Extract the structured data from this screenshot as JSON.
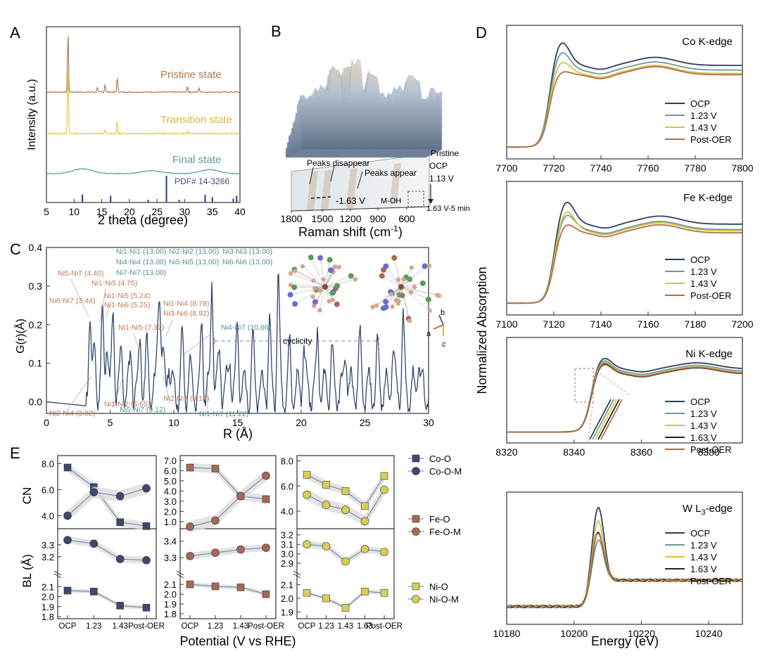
{
  "panel_labels": {
    "A": "A",
    "B": "B",
    "C": "C",
    "D": "D",
    "E": "E"
  },
  "colors": {
    "axis": "#333333",
    "navy": "#2f3e5f",
    "teal": "#6c98a0",
    "gold": "#d7c33f",
    "brown": "#b36d44",
    "black": "#222222",
    "xrd_pristine": "#b9774a",
    "xrd_transition": "#e4ca3e",
    "xrd_final": "#5c9a9a",
    "pdf": "#3a4f8a",
    "band": "#dcdcdc",
    "co": "#3d4a6e",
    "fe": "#a56a55",
    "ni": "#d8cf56",
    "label_brown": "#b87a55",
    "label_teal": "#4f8f95"
  },
  "chart_data": [
    {
      "panel": "A",
      "type": "line",
      "xlabel": "2 theta (degree)",
      "ylabel": "Intensity (a.u.)",
      "xlim": [
        5,
        40
      ],
      "xticks": [
        5,
        10,
        15,
        20,
        25,
        30,
        35,
        40
      ],
      "series": [
        {
          "name": "Pristine state",
          "peaks": [
            [
              8.9,
              1.0
            ],
            [
              14.2,
              0.08
            ],
            [
              15.6,
              0.13
            ],
            [
              17.8,
              0.25
            ],
            [
              30.5,
              0.1
            ],
            [
              32.6,
              0.07
            ]
          ]
        },
        {
          "name": "Transition state",
          "peaks": [
            [
              8.9,
              0.9
            ],
            [
              15.6,
              0.06
            ],
            [
              17.8,
              0.17
            ],
            [
              30.5,
              0.04
            ]
          ]
        },
        {
          "name": "Final state",
          "humps": [
            [
              11.5,
              0.1
            ],
            [
              24,
              0.06
            ],
            [
              34.5,
              0.08
            ]
          ]
        }
      ],
      "reference": {
        "name": "PDF# 14-3266",
        "sticks": [
          [
            11.5,
            0.3
          ],
          [
            16.6,
            0.25
          ],
          [
            23.4,
            0.1
          ],
          [
            26.7,
            1.0
          ],
          [
            29.0,
            0.1
          ],
          [
            33.7,
            0.3
          ],
          [
            35.0,
            0.2
          ],
          [
            38.8,
            0.15
          ],
          [
            39.4,
            0.25
          ]
        ]
      }
    },
    {
      "panel": "B",
      "type": "area",
      "xlabel": "Raman shift (cm-1)",
      "xlabel_main": "Raman shift (cm",
      "xlabel_sup": "-1",
      "xlabel_close": ")",
      "xticks": [
        "1800",
        "1500",
        "1200",
        "900",
        "600"
      ],
      "annotations": [
        "Peaks disappear",
        "Peaks appear",
        "-1.63 V",
        "M-OH"
      ],
      "potential_labels": [
        "Pristine",
        "OCP",
        "1.13 V",
        "1.63 V-5 min"
      ]
    },
    {
      "panel": "C",
      "type": "line",
      "xlabel": "R (Å)",
      "ylabel": "G(r)(Å)",
      "xlim": [
        0,
        30
      ],
      "ylim": [
        -0.03,
        0.4
      ],
      "xticks": [
        0,
        5,
        10,
        15,
        20,
        25,
        30
      ],
      "yticks": [
        0.0,
        0.1,
        0.2,
        0.3,
        0.4
      ],
      "ytick_labels": [
        "0.0",
        "0.1",
        "0.2",
        "0.3",
        "0.4"
      ],
      "peaks": [
        [
          3.4,
          0.22
        ],
        [
          3.8,
          0.1
        ],
        [
          4.4,
          0.18
        ],
        [
          4.75,
          0.16
        ],
        [
          5.24,
          0.2
        ],
        [
          5.9,
          0.1
        ],
        [
          6.65,
          0.1
        ],
        [
          7.37,
          0.14
        ],
        [
          7.9,
          0.1
        ],
        [
          8.78,
          0.17
        ],
        [
          8.92,
          0.2
        ],
        [
          9.14,
          0.06
        ],
        [
          9.6,
          0.1
        ],
        [
          10.66,
          0.12
        ],
        [
          11.22,
          0.05
        ],
        [
          12.2,
          0.17
        ],
        [
          13.0,
          0.3
        ],
        [
          13.6,
          0.1
        ],
        [
          14.4,
          0.1
        ],
        [
          15.0,
          0.17
        ],
        [
          16.2,
          0.12
        ],
        [
          17.5,
          0.17
        ],
        [
          18.2,
          0.29
        ],
        [
          19.1,
          0.1
        ],
        [
          20.2,
          0.12
        ],
        [
          21.3,
          0.15
        ],
        [
          22.4,
          0.1
        ],
        [
          23.5,
          0.12
        ],
        [
          24.6,
          0.12
        ],
        [
          26.0,
          0.1
        ],
        [
          27.2,
          0.12
        ],
        [
          28.0,
          0.17
        ],
        [
          29.2,
          0.1
        ]
      ],
      "annotations_brown": [
        "Ni5-Ni7 (4.40)",
        "Ni1-Ni5 (4.75)",
        "Ni6-Ni7 (3.44)",
        "Ni1-Ni5 (5.24)",
        "Ni1-Ni6 (5.25)",
        "Ni1-Ni4 (8.78)",
        "Ni3-Ni6 (8.92)",
        "Ni1-Ni5 (7.37)",
        "Ni2-Ni4 (3.82)",
        "Ni1-Ni2 (6.65)",
        "Ni2-Ni7 (9.14)"
      ],
      "annotations_teal": [
        "Ni1-Ni1 (13.00)",
        "Ni2-Ni2 (13.00)",
        "Ni3-Ni3 (13.00)",
        "Ni4-Ni4 (13.00)",
        "Ni5-Ni5 (13.00)",
        "Ni6-Ni6 (13.00)",
        "Ni7-Ni7 (13.00)",
        "Ni4-Ni7 (10.66)",
        "Ni5-Ni7 (9.12)",
        "Ni1-Ni7 (11.22)"
      ],
      "cyclicity_label": "cyclicity",
      "axes_labels": [
        "a",
        "b",
        "c"
      ]
    },
    {
      "panel": "D",
      "type": "line",
      "ylabel": "Normalized Absorption",
      "xlabel": "Energy (eV)",
      "subplots": [
        {
          "title": "Co K-edge",
          "xlim": [
            7700,
            7800
          ],
          "xticks": [
            7700,
            7720,
            7740,
            7760,
            7780,
            7800
          ],
          "edge": 7718,
          "series": [
            {
              "name": "OCP",
              "peak": 1.6,
              "post": 1.22
            },
            {
              "name": "1.23 V",
              "peak": 1.45,
              "post": 1.15
            },
            {
              "name": "1.43 V",
              "peak": 1.3,
              "post": 1.1
            },
            {
              "name": "Post-OER",
              "peak": 1.15,
              "post": 1.08
            }
          ]
        },
        {
          "title": "Fe K-edge",
          "xlim": [
            7100,
            7200
          ],
          "xticks": [
            7100,
            7120,
            7140,
            7160,
            7180,
            7200
          ],
          "edge": 7120,
          "series": [
            {
              "name": "OCP",
              "peak": 1.55,
              "post": 1.18
            },
            {
              "name": "1.23 V",
              "peak": 1.35,
              "post": 1.1
            },
            {
              "name": "1.43 V",
              "peak": 1.4,
              "post": 1.08
            },
            {
              "name": "Post-OER",
              "peak": 1.2,
              "post": 1.05
            }
          ]
        },
        {
          "title": "Ni K-edge",
          "xlim": [
            8320,
            8390
          ],
          "xticks": [
            8320,
            8340,
            8360,
            8380
          ],
          "edge": 8345,
          "series": [
            {
              "name": "OCP",
              "peak": 1.5,
              "post": 1.25
            },
            {
              "name": "1.23 V",
              "peak": 1.45,
              "post": 1.2
            },
            {
              "name": "1.43 V",
              "peak": 1.42,
              "post": 1.17
            },
            {
              "name": "1.63 V",
              "peak": 1.38,
              "post": 1.15
            },
            {
              "name": "Post-OER",
              "peak": 1.4,
              "post": 1.16
            }
          ]
        },
        {
          "title_main": "W L",
          "title_sub": "3",
          "title_tail": "-edge",
          "xlim": [
            10180,
            10250
          ],
          "xticks": [
            10180,
            10200,
            10220,
            10240
          ],
          "edge": 10205,
          "series": [
            {
              "name": "OCP",
              "peak": 2.8,
              "post": 1.0
            },
            {
              "name": "1.23 V",
              "peak": 1.9,
              "post": 0.95
            },
            {
              "name": "1.43 V",
              "peak": 2.4,
              "post": 1.0
            },
            {
              "name": "1.63 V",
              "peak": 2.1,
              "post": 1.05
            },
            {
              "name": "Post-OER",
              "peak": 2.1,
              "post": 1.0
            }
          ]
        }
      ]
    },
    {
      "panel": "E",
      "type": "line",
      "xlabel": "Potential (V vs RHE)",
      "ylabel_top": "CN",
      "ylabel_bottom": "BL (Å)",
      "groups": [
        {
          "metal": "Co",
          "categories": [
            "OCP",
            "1.23",
            "1.43",
            "Post-OER"
          ],
          "cn": [
            {
              "name": "Co-O",
              "values": [
                7.7,
                6.2,
                3.5,
                3.2
              ]
            },
            {
              "name": "Co-O-M",
              "values": [
                4.0,
                5.8,
                5.5,
                6.1
              ]
            }
          ],
          "cn_ylim": [
            3.0,
            8.4
          ],
          "cn_ticks": [
            "4.0",
            "6.0",
            "8.0"
          ],
          "cn_tick_values": [
            4,
            6,
            8
          ],
          "bl_high": [
            3.34,
            3.31,
            3.18,
            3.17
          ],
          "bl_high_ylim": [
            3.08,
            3.4
          ],
          "bl_high_ticks": [
            "3.2",
            "3.3"
          ],
          "bl_high_tick_values": [
            3.2,
            3.3
          ],
          "bl_low": [
            2.06,
            2.05,
            1.91,
            1.89
          ],
          "bl_low_ylim": [
            1.78,
            2.2
          ],
          "bl_low_ticks": [
            "1.8",
            "1.9",
            "2.0",
            "2.1"
          ],
          "bl_low_tick_values": [
            1.8,
            1.9,
            2.0,
            2.1
          ]
        },
        {
          "metal": "Fe",
          "categories": [
            "OCP",
            "1.23",
            "1.43",
            "Post-OER"
          ],
          "cn": [
            {
              "name": "Fe-O",
              "values": [
                6.3,
                6.2,
                3.5,
                3.2
              ]
            },
            {
              "name": "Fe-O-M",
              "values": [
                0.5,
                1.1,
                3.5,
                5.5
              ]
            }
          ],
          "cn_ylim": [
            0.3,
            7.2
          ],
          "cn_ticks": [
            "1.0",
            "2.0",
            "3.0",
            "4.0",
            "5.0",
            "6.0",
            "7.0"
          ],
          "cn_tick_values": [
            1,
            2,
            3,
            4,
            5,
            6,
            7
          ],
          "bl_high": [
            3.31,
            3.33,
            3.35,
            3.36
          ],
          "bl_high_ylim": [
            3.22,
            3.45
          ],
          "bl_high_ticks": [
            "3.3",
            "3.4"
          ],
          "bl_high_tick_values": [
            3.3,
            3.4
          ],
          "bl_low": [
            2.1,
            2.08,
            2.07,
            2.0
          ],
          "bl_low_ylim": [
            1.75,
            2.18
          ],
          "bl_low_ticks": [
            "1.8",
            "1.9",
            "2.0",
            "2.1"
          ],
          "bl_low_tick_values": [
            1.8,
            1.9,
            2.0,
            2.1
          ]
        },
        {
          "metal": "Ni",
          "categories": [
            "OCP",
            "1.23",
            "1.43",
            "1.63",
            "Post-OER"
          ],
          "cn": [
            {
              "name": "Ni-O",
              "values": [
                6.9,
                6.1,
                5.6,
                4.4,
                6.8
              ]
            },
            {
              "name": "Ni-O-M",
              "values": [
                5.3,
                4.5,
                4.1,
                3.2,
                5.7
              ]
            }
          ],
          "cn_ylim": [
            2.6,
            8.2
          ],
          "cn_ticks": [
            "4.0",
            "6.0",
            "8.0"
          ],
          "cn_tick_values": [
            4,
            6,
            8
          ],
          "bl_high": [
            3.1,
            3.08,
            2.92,
            3.05,
            3.02
          ],
          "bl_high_ylim": [
            2.82,
            3.22
          ],
          "bl_high_ticks": [
            "2.9",
            "3.0",
            "3.1",
            "3.2"
          ],
          "bl_high_tick_values": [
            2.9,
            3.0,
            3.1,
            3.2
          ],
          "bl_low": [
            2.04,
            2.0,
            1.93,
            2.05,
            2.04
          ],
          "bl_low_ylim": [
            1.85,
            2.16
          ],
          "bl_low_ticks": [
            "1.9",
            "2.0",
            "2.1"
          ],
          "bl_low_tick_values": [
            1.9,
            2.0,
            2.1
          ]
        }
      ]
    }
  ]
}
